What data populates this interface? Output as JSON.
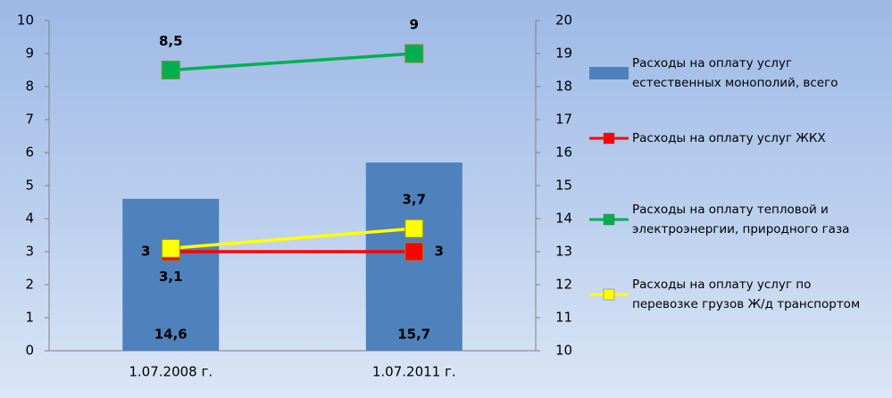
{
  "chart_data": {
    "type": "bar",
    "categories": [
      "1.07.2008 г.",
      "1.07.2011 г."
    ],
    "series": [
      {
        "name": "Расходы на оплату услуг естественных монополий, всего",
        "type": "bar",
        "axis": "y2",
        "color": "#4f81bd",
        "values": [
          14.6,
          15.7
        ],
        "value_labels": [
          "14,6",
          "15,7"
        ]
      },
      {
        "name": "Расходы на оплату услуг ЖКХ",
        "type": "line",
        "color": "#ff0000",
        "values": [
          3,
          3
        ]
      },
      {
        "name": "Расходы на оплату тепловой и электроэнергии, природного газа",
        "type": "line",
        "color": "#00b050",
        "values": [
          8.5,
          9
        ],
        "value_labels": [
          "8,5",
          "9"
        ]
      },
      {
        "name": "Расходы на оплату услуг по перевозке грузов Ж/д транспортом",
        "type": "line",
        "color": "#ffff00",
        "values": [
          3.1,
          3.7
        ],
        "value_labels": [
          "3,1",
          "3,7"
        ]
      }
    ],
    "ylim": [
      0,
      10
    ],
    "yticks": [
      0,
      1,
      2,
      3,
      4,
      5,
      6,
      7,
      8,
      9,
      10
    ],
    "y2lim": [
      10,
      20
    ],
    "y2ticks": [
      10,
      11,
      12,
      13,
      14,
      15,
      16,
      17,
      18,
      19,
      20
    ],
    "grid": false,
    "legend": "right"
  }
}
